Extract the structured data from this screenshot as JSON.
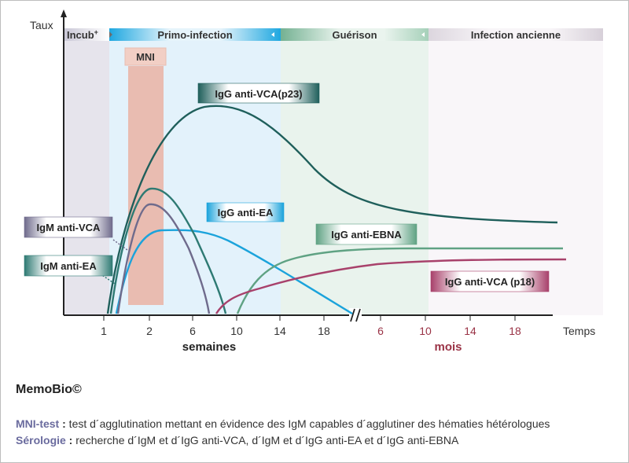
{
  "axis": {
    "y_label": "Taux",
    "x_label": "Temps",
    "unit_weeks": "semaines",
    "unit_months": "mois",
    "week_ticks": [
      "1",
      "2",
      "6",
      "10",
      "14",
      "18"
    ],
    "month_ticks": [
      "6",
      "10",
      "14",
      "18"
    ]
  },
  "phases": [
    {
      "label": "Incub",
      "suffix": "+"
    },
    {
      "label": "Primo-infection"
    },
    {
      "label": "Guérison"
    },
    {
      "label": "Infection ancienne"
    }
  ],
  "mni_label": "MNI",
  "curves": {
    "igg_vca_p23": "IgG anti-VCA(p23)",
    "igg_ea": "IgG anti-EA",
    "igg_ebna": "IgG anti-EBNA",
    "igg_vca_p18": "IgG anti-VCA (p18)",
    "igm_vca": "IgM anti-VCA",
    "igm_ea": "IgM anti-EA"
  },
  "colors": {
    "igg_vca_p23": "#1f5f5b",
    "igg_ea": "#1ba3db",
    "igg_ebna": "#5fa283",
    "igg_vca_p18": "#a8416b",
    "igm_vca": "#6f6b8c",
    "igm_ea": "#2e7a73",
    "mni_band": "#e9b6a8",
    "month_red": "#9a3346"
  },
  "brand": "MemoBio©",
  "notes": [
    {
      "key": "MNI-test",
      "sep": " :",
      "text": " test d´agglutination mettant en évidence des IgM capables d´agglutiner des hématies hétérologues"
    },
    {
      "key": "Sérologie",
      "sep": " :",
      "text": " recherche d´IgM et d´IgG anti-VCA, d´IgM et d´IgG anti-EA et d´IgG anti-EBNA"
    }
  ]
}
